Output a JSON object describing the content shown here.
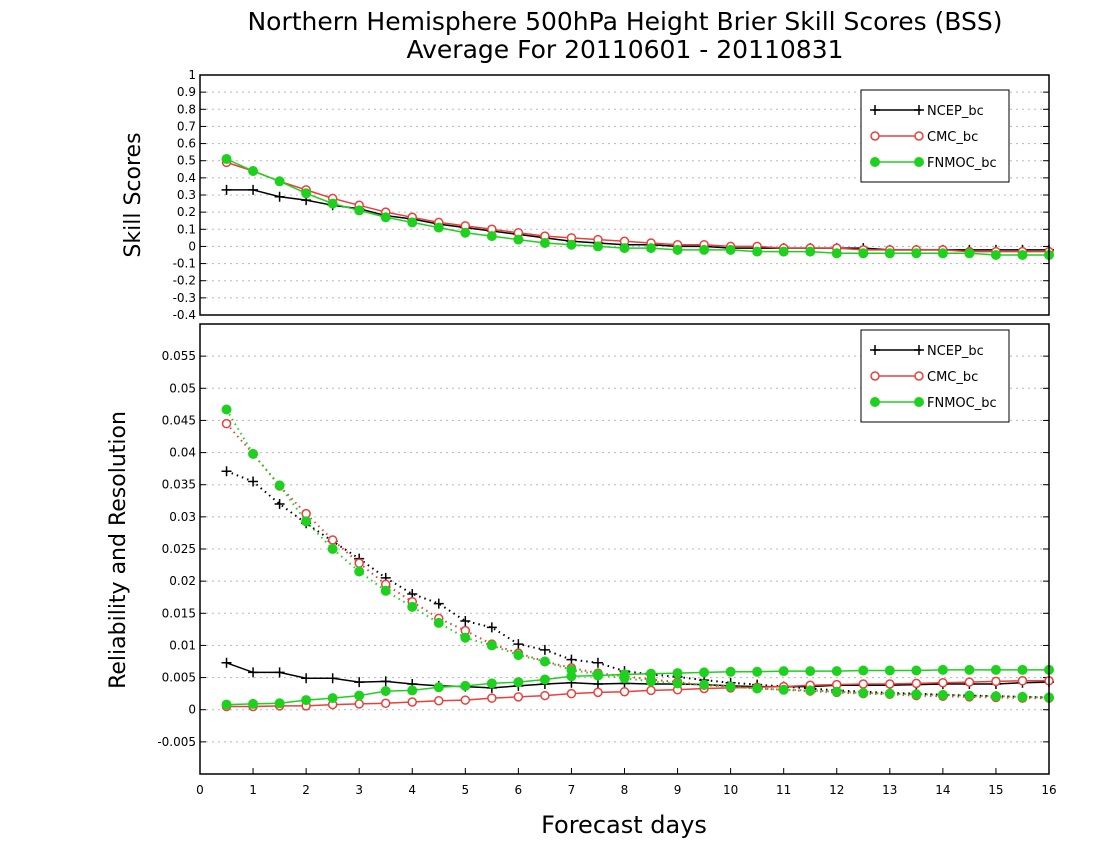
{
  "title_line1": "Northern Hemisphere 500hPa Height Brier Skill Scores (BSS)",
  "title_line2": "Average For 20110601 - 20110831",
  "colors": {
    "NCEP_bc": "#000000",
    "CMC_bc": "#e8403a",
    "FNMOC_bc": "#1fd11f"
  },
  "chart_data": [
    {
      "type": "line",
      "ylabel": "Skill Scores",
      "xlabel": "",
      "xlim": [
        0,
        16
      ],
      "ylim": [
        -0.4,
        1
      ],
      "yticks": [
        "1",
        "0.9",
        "0.8",
        "0.7",
        "0.6",
        "0.5",
        "0.4",
        "0.3",
        "0.2",
        "0.1",
        "0",
        "-0.1",
        "-0.2",
        "-0.3",
        "-0.4"
      ],
      "grid": true,
      "legend_position": "top-right",
      "x": [
        0.5,
        1,
        1.5,
        2,
        2.5,
        3,
        3.5,
        4,
        4.5,
        5,
        5.5,
        6,
        6.5,
        7,
        7.5,
        8,
        8.5,
        9,
        9.5,
        10,
        10.5,
        11,
        11.5,
        12,
        12.5,
        13,
        13.5,
        14,
        14.5,
        15,
        15.5,
        16
      ],
      "series": [
        {
          "name": "NCEP_bc",
          "style": "solid",
          "marker": "plus",
          "values": [
            0.33,
            0.33,
            0.29,
            0.27,
            0.24,
            0.22,
            0.18,
            0.16,
            0.13,
            0.11,
            0.09,
            0.07,
            0.05,
            0.03,
            0.02,
            0.01,
            0.01,
            0.0,
            0.0,
            -0.01,
            -0.01,
            -0.01,
            -0.01,
            -0.01,
            -0.01,
            -0.02,
            -0.02,
            -0.02,
            -0.02,
            -0.02,
            -0.02,
            -0.02
          ]
        },
        {
          "name": "CMC_bc",
          "style": "solid",
          "marker": "open-circle",
          "values": [
            0.49,
            0.44,
            0.38,
            0.33,
            0.28,
            0.24,
            0.2,
            0.17,
            0.14,
            0.12,
            0.1,
            0.08,
            0.06,
            0.05,
            0.04,
            0.03,
            0.02,
            0.01,
            0.01,
            0.0,
            0.0,
            -0.01,
            -0.01,
            -0.01,
            -0.02,
            -0.02,
            -0.02,
            -0.02,
            -0.03,
            -0.03,
            -0.03,
            -0.03
          ]
        },
        {
          "name": "FNMOC_bc",
          "style": "solid",
          "marker": "filled-circle",
          "values": [
            0.51,
            0.44,
            0.38,
            0.31,
            0.25,
            0.21,
            0.17,
            0.14,
            0.11,
            0.08,
            0.06,
            0.04,
            0.02,
            0.01,
            0.0,
            -0.01,
            -0.01,
            -0.02,
            -0.02,
            -0.02,
            -0.03,
            -0.03,
            -0.03,
            -0.04,
            -0.04,
            -0.04,
            -0.04,
            -0.04,
            -0.04,
            -0.05,
            -0.05,
            -0.05
          ]
        }
      ]
    },
    {
      "type": "line",
      "ylabel": "Reliability and Resolution",
      "xlabel": "Forecast days",
      "xlim": [
        0,
        16
      ],
      "ylim": [
        -0.01,
        0.06
      ],
      "yticks": [
        "0.055",
        "0.05",
        "0.045",
        "0.04",
        "0.035",
        "0.03",
        "0.025",
        "0.02",
        "0.015",
        "0.01",
        "0.005",
        "0",
        "-0.005"
      ],
      "xticks": [
        "0",
        "1",
        "2",
        "3",
        "4",
        "5",
        "6",
        "7",
        "8",
        "9",
        "10",
        "11",
        "12",
        "13",
        "14",
        "15",
        "16"
      ],
      "grid": true,
      "legend_position": "top-right",
      "x": [
        0.5,
        1,
        1.5,
        2,
        2.5,
        3,
        3.5,
        4,
        4.5,
        5,
        5.5,
        6,
        6.5,
        7,
        7.5,
        8,
        8.5,
        9,
        9.5,
        10,
        10.5,
        11,
        11.5,
        12,
        12.5,
        13,
        13.5,
        14,
        14.5,
        15,
        15.5,
        16
      ],
      "series": [
        {
          "name": "NCEP_bc",
          "style": "solid",
          "marker": "plus",
          "values": [
            0.0073,
            0.0058,
            0.0058,
            0.0049,
            0.0049,
            0.0043,
            0.0044,
            0.004,
            0.0037,
            0.0036,
            0.0034,
            0.0037,
            0.004,
            0.0042,
            0.004,
            0.0041,
            0.004,
            0.004,
            0.0039,
            0.0037,
            0.0036,
            0.0036,
            0.0036,
            0.0038,
            0.0038,
            0.0038,
            0.0039,
            0.004,
            0.004,
            0.004,
            0.0042,
            0.0043
          ]
        },
        {
          "name": "",
          "style": "dotted",
          "marker": "plus",
          "values": [
            0.0371,
            0.0355,
            0.032,
            0.029,
            0.0262,
            0.0235,
            0.0205,
            0.018,
            0.0165,
            0.0138,
            0.0128,
            0.0102,
            0.0093,
            0.0078,
            0.0073,
            0.006,
            0.0055,
            0.0051,
            0.0046,
            0.0042,
            0.0039,
            0.0036,
            0.0033,
            0.003,
            0.0028,
            0.0026,
            0.0025,
            0.0023,
            0.0022,
            0.0021,
            0.002,
            0.0019
          ]
        },
        {
          "name": "CMC_bc",
          "style": "solid",
          "marker": "open-circle",
          "values": [
            0.0005,
            0.0005,
            0.0006,
            0.0006,
            0.0008,
            0.0009,
            0.001,
            0.0012,
            0.0014,
            0.0015,
            0.0018,
            0.002,
            0.0022,
            0.0025,
            0.0027,
            0.0028,
            0.003,
            0.0031,
            0.0033,
            0.0034,
            0.0035,
            0.0036,
            0.0038,
            0.0039,
            0.004,
            0.004,
            0.0041,
            0.0042,
            0.0043,
            0.0044,
            0.0045,
            0.0045
          ]
        },
        {
          "name": "",
          "style": "dotted",
          "marker": "open-circle",
          "values": [
            0.0445,
            0.0398,
            0.0348,
            0.0305,
            0.0264,
            0.0228,
            0.0195,
            0.0168,
            0.0142,
            0.0123,
            0.0102,
            0.0088,
            0.0075,
            0.0065,
            0.0057,
            0.0052,
            0.0047,
            0.0043,
            0.0038,
            0.0036,
            0.0033,
            0.0031,
            0.0029,
            0.0027,
            0.0025,
            0.0024,
            0.0022,
            0.0021,
            0.002,
            0.0019,
            0.0018,
            0.0018
          ]
        },
        {
          "name": "FNMOC_bc",
          "style": "solid",
          "marker": "filled-circle",
          "values": [
            0.0008,
            0.0009,
            0.001,
            0.0015,
            0.0018,
            0.0022,
            0.0029,
            0.003,
            0.0035,
            0.0037,
            0.0041,
            0.0043,
            0.0047,
            0.0052,
            0.0053,
            0.0055,
            0.0056,
            0.0057,
            0.0058,
            0.0059,
            0.0059,
            0.006,
            0.006,
            0.006,
            0.0061,
            0.0061,
            0.0061,
            0.0062,
            0.0062,
            0.0062,
            0.0062,
            0.0062
          ]
        },
        {
          "name": "",
          "style": "dotted",
          "marker": "filled-circle",
          "values": [
            0.0467,
            0.0398,
            0.0349,
            0.0293,
            0.025,
            0.0215,
            0.0185,
            0.016,
            0.0135,
            0.0112,
            0.01,
            0.0085,
            0.0075,
            0.0062,
            0.0055,
            0.0049,
            0.0044,
            0.0041,
            0.0039,
            0.0036,
            0.0033,
            0.0031,
            0.003,
            0.0028,
            0.0026,
            0.0025,
            0.0024,
            0.0023,
            0.0022,
            0.0021,
            0.002,
            0.0019
          ]
        }
      ]
    }
  ]
}
